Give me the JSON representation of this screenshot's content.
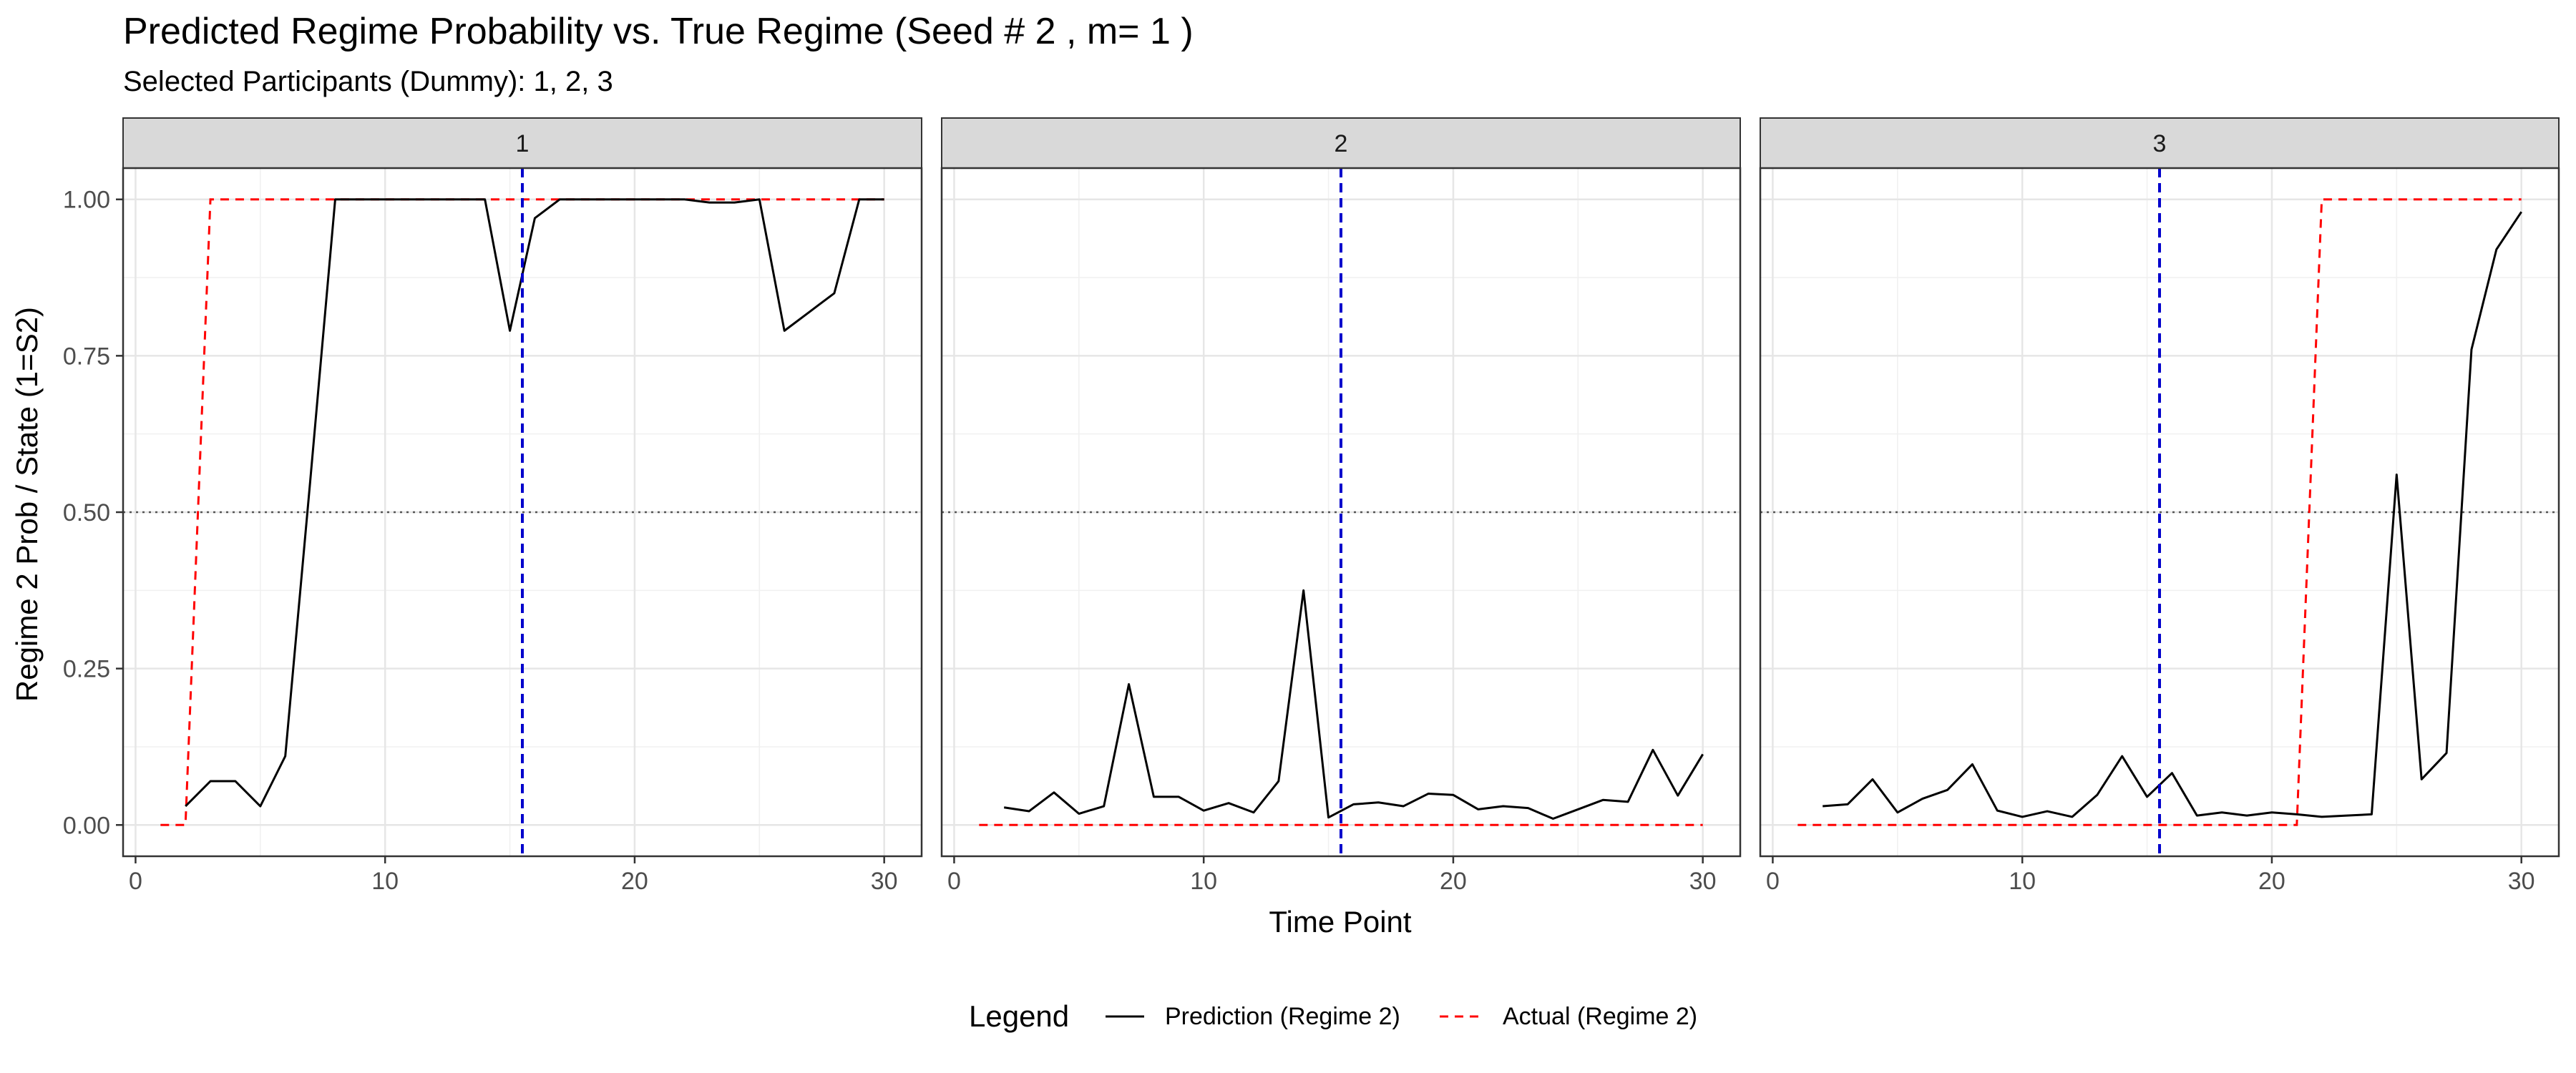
{
  "title": "Predicted Regime Probability vs. True Regime (Seed # 2 , m= 1 )",
  "subtitle": "Selected Participants (Dummy): 1, 2, 3",
  "chart_data": {
    "type": "line",
    "title": "Predicted Regime Probability vs. True Regime (Seed # 2 , m= 1 )",
    "subtitle": "Selected Participants (Dummy): 1, 2, 3",
    "xlabel": "Time Point",
    "ylabel": "Regime 2 Prob / State (1=S2)",
    "xlim": [
      -0.5,
      31.5
    ],
    "ylim": [
      -0.05,
      1.05
    ],
    "x_ticks": [
      0,
      10,
      20,
      30
    ],
    "y_ticks": [
      0.0,
      0.25,
      0.5,
      0.75,
      1.0
    ],
    "y_tick_labels": [
      "0.00",
      "0.25",
      "0.50",
      "0.75",
      "1.00"
    ],
    "grid": true,
    "legend_position": "bottom",
    "legend_title": "Legend",
    "legend": [
      {
        "label": "Prediction (Regime 2)",
        "color": "#000000",
        "dash": "solid"
      },
      {
        "label": "Actual (Regime 2)",
        "color": "#ff0000",
        "dash": "dashed"
      }
    ],
    "reference_lines": {
      "vertical_x": 15.5,
      "vertical_color": "#0000cc",
      "horizontal_y": 0.5,
      "horizontal_color": "#555555"
    },
    "panels": [
      {
        "label": "1",
        "prediction": {
          "x": [
            2,
            3,
            4,
            5,
            6,
            7,
            8,
            9,
            10,
            11,
            12,
            13,
            14,
            15,
            16,
            17,
            18,
            19,
            20,
            21,
            22,
            23,
            24,
            25,
            26,
            27,
            28,
            29,
            30
          ],
          "y": [
            0.03,
            0.07,
            0.07,
            0.03,
            0.11,
            0.55,
            1.0,
            1.0,
            1.0,
            1.0,
            1.0,
            1.0,
            1.0,
            0.79,
            0.97,
            1.0,
            1.0,
            1.0,
            1.0,
            1.0,
            1.0,
            0.995,
            0.995,
            1.0,
            0.79,
            0.82,
            0.85,
            1.0,
            1.0
          ]
        },
        "actual": {
          "x": [
            1,
            2,
            3,
            30
          ],
          "y": [
            0,
            0,
            1,
            1
          ]
        }
      },
      {
        "label": "2",
        "prediction": {
          "x": [
            2,
            3,
            4,
            5,
            6,
            7,
            8,
            9,
            10,
            11,
            12,
            13,
            14,
            15,
            16,
            17,
            18,
            19,
            20,
            21,
            22,
            23,
            24,
            25,
            26,
            27,
            28,
            29,
            30
          ],
          "y": [
            0.028,
            0.022,
            0.052,
            0.018,
            0.03,
            0.225,
            0.045,
            0.045,
            0.023,
            0.035,
            0.02,
            0.07,
            0.375,
            0.012,
            0.033,
            0.036,
            0.03,
            0.05,
            0.048,
            0.025,
            0.03,
            0.027,
            0.01,
            0.025,
            0.04,
            0.037,
            0.12,
            0.047,
            0.113
          ]
        },
        "actual": {
          "x": [
            1,
            30
          ],
          "y": [
            0,
            0
          ]
        }
      },
      {
        "label": "3",
        "prediction": {
          "x": [
            2,
            3,
            4,
            5,
            6,
            7,
            8,
            9,
            10,
            11,
            12,
            13,
            14,
            15,
            16,
            17,
            18,
            19,
            20,
            21,
            22,
            23,
            24,
            25,
            26,
            27,
            28,
            29,
            30
          ],
          "y": [
            0.03,
            0.033,
            0.073,
            0.02,
            0.042,
            0.056,
            0.097,
            0.023,
            0.013,
            0.022,
            0.013,
            0.048,
            0.11,
            0.045,
            0.083,
            0.015,
            0.02,
            0.015,
            0.02,
            0.017,
            0.013,
            0.015,
            0.017,
            0.56,
            0.073,
            0.115,
            0.76,
            0.92,
            0.98
          ]
        },
        "actual": {
          "x": [
            1,
            21,
            22,
            30
          ],
          "y": [
            0,
            0,
            1,
            1
          ]
        }
      }
    ]
  }
}
